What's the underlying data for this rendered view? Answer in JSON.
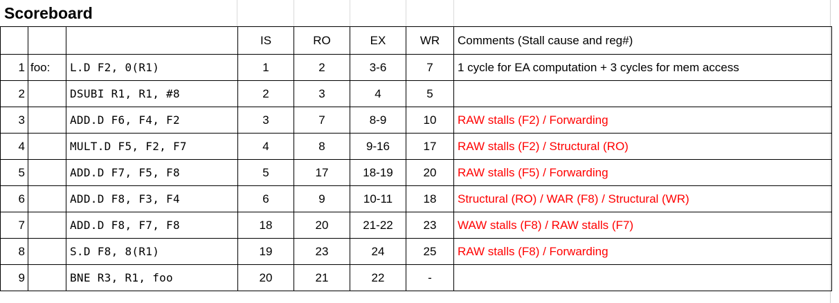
{
  "title": "Scoreboard",
  "header": {
    "num": "",
    "label": "",
    "instruction": "",
    "is": "IS",
    "ro": "RO",
    "ex": "EX",
    "wr": "WR",
    "comments": "Comments (Stall cause and reg#)"
  },
  "rows": [
    {
      "num": "1",
      "label": "foo:",
      "instruction": "L.D F2, 0(R1)",
      "is": "1",
      "ro": "2",
      "ex": "3-6",
      "wr": "7",
      "comment": "1 cycle for EA computation + 3 cycles for mem access",
      "comment_red": false
    },
    {
      "num": "2",
      "label": "",
      "instruction": "DSUBI R1, R1, #8",
      "is": "2",
      "ro": "3",
      "ex": "4",
      "wr": "5",
      "comment": "",
      "comment_red": false
    },
    {
      "num": "3",
      "label": "",
      "instruction": "ADD.D F6, F4, F2",
      "is": "3",
      "ro": "7",
      "ex": "8-9",
      "wr": "10",
      "comment": "RAW stalls (F2) / Forwarding",
      "comment_red": true
    },
    {
      "num": "4",
      "label": "",
      "instruction": "MULT.D F5, F2, F7",
      "is": "4",
      "ro": "8",
      "ex": "9-16",
      "wr": "17",
      "comment": "RAW stalls (F2) / Structural (RO)",
      "comment_red": true
    },
    {
      "num": "5",
      "label": "",
      "instruction": "ADD.D F7, F5, F8",
      "is": "5",
      "ro": "17",
      "ex": "18-19",
      "wr": "20",
      "comment": "RAW stalls (F5) / Forwarding",
      "comment_red": true
    },
    {
      "num": "6",
      "label": "",
      "instruction": "ADD.D F8, F3, F4",
      "is": "6",
      "ro": "9",
      "ex": "10-11",
      "wr": "18",
      "comment": "Structural (RO) / WAR (F8) / Structural (WR)",
      "comment_red": true
    },
    {
      "num": "7",
      "label": "",
      "instruction": "ADD.D F8, F7, F8",
      "is": "18",
      "ro": "20",
      "ex": "21-22",
      "wr": "23",
      "comment": "WAW stalls (F8) / RAW stalls (F7)",
      "comment_red": true
    },
    {
      "num": "8",
      "label": "",
      "instruction": "S.D F8, 8(R1)",
      "is": "19",
      "ro": "23",
      "ex": "24",
      "wr": "25",
      "comment": "RAW stalls (F8) / Forwarding",
      "comment_red": true
    },
    {
      "num": "9",
      "label": "",
      "instruction": "BNE R3, R1, foo",
      "is": "20",
      "ro": "21",
      "ex": "22",
      "wr": "-",
      "comment": "",
      "comment_red": false
    }
  ],
  "colors": {
    "stall_comment": "#ff0000",
    "text": "#000000",
    "border": "#000000"
  }
}
